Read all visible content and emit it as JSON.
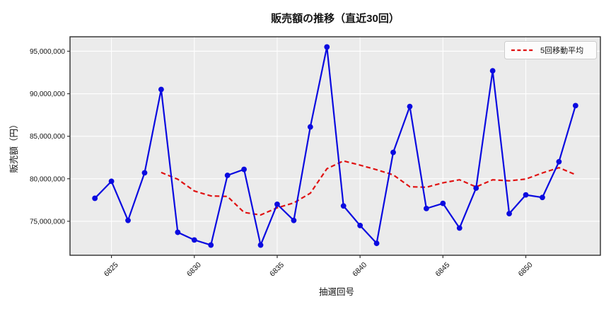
{
  "chart_data": {
    "type": "line",
    "title": "販売額の推移（直近30回）",
    "xlabel": "抽選回号",
    "ylabel": "販売額（円）",
    "x": [
      6824,
      6825,
      6826,
      6827,
      6828,
      6829,
      6830,
      6831,
      6832,
      6833,
      6834,
      6835,
      6836,
      6837,
      6838,
      6839,
      6840,
      6841,
      6842,
      6843,
      6844,
      6845,
      6846,
      6847,
      6848,
      6849,
      6850,
      6851,
      6852,
      6853
    ],
    "series": [
      {
        "name": "販売額",
        "color": "#0a0ae0",
        "line_style": "solid",
        "marker": "circle",
        "values": [
          77700000,
          79700000,
          75100000,
          80700000,
          90500000,
          73700000,
          72800000,
          72200000,
          80400000,
          81100000,
          72200000,
          77000000,
          75100000,
          86100000,
          95500000,
          76800000,
          74500000,
          72400000,
          83100000,
          88500000,
          76500000,
          77100000,
          74200000,
          78900000,
          92700000,
          75900000,
          78100000,
          77800000,
          82000000,
          88600000
        ]
      },
      {
        "name": "5回移動平均",
        "color": "#e01212",
        "line_style": "dashed",
        "marker": "none",
        "values": [
          null,
          null,
          null,
          null,
          80740000,
          79940000,
          78560000,
          77980000,
          77920000,
          76040000,
          75740000,
          76580000,
          77160000,
          78300000,
          81180000,
          82100000,
          81600000,
          81060000,
          80460000,
          79060000,
          79000000,
          79520000,
          79880000,
          79040000,
          79880000,
          79760000,
          79960000,
          80680000,
          81300000,
          80480000
        ]
      }
    ],
    "xticks": [
      6825,
      6830,
      6835,
      6840,
      6845,
      6850
    ],
    "yticks": [
      75000000,
      80000000,
      85000000,
      90000000,
      95000000
    ],
    "ytick_labels": [
      "75,000,000",
      "80,000,000",
      "85,000,000",
      "90,000,000",
      "95,000,000"
    ],
    "xlim": [
      6822.5,
      6854.5
    ],
    "ylim": [
      71000000,
      96700000
    ],
    "grid": true,
    "legend": {
      "position": "upper-right",
      "entries": [
        {
          "label": "5回移動平均",
          "color": "#e01212",
          "style": "dashed"
        }
      ]
    },
    "colors": {
      "figure_bg": "#ffffff",
      "plot_bg": "#ebebeb",
      "grid": "#ffffff",
      "spine": "#2e2e2e",
      "tick": "#333333",
      "legend_bg": "#fcfcfc",
      "legend_border": "#cccccc"
    }
  }
}
